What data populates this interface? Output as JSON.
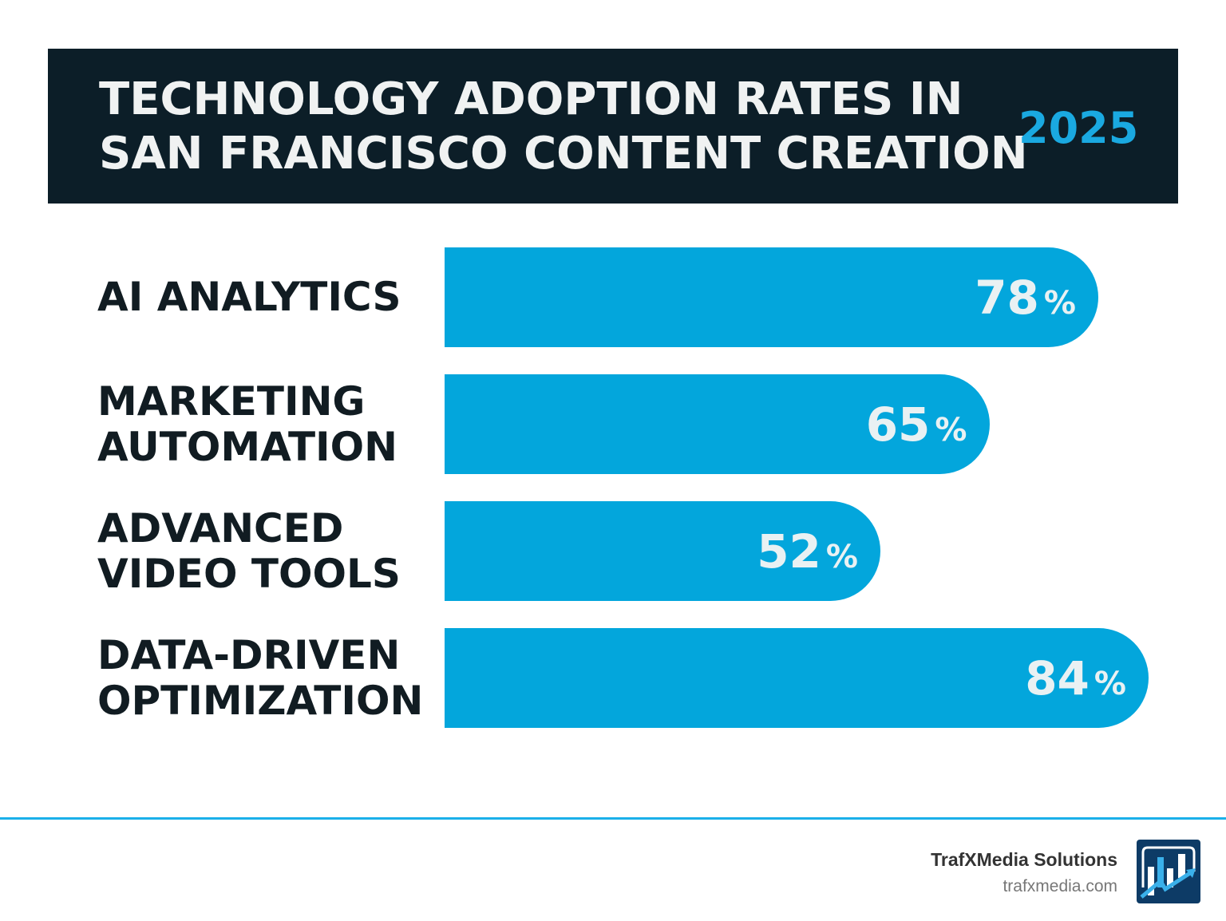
{
  "chart_data": {
    "type": "bar",
    "orientation": "horizontal",
    "title": "TECHNOLOGY ADOPTION RATES IN SAN FRANCISCO CONTENT CREATION",
    "title_lines": [
      "TECHNOLOGY ADOPTION RATES IN",
      "SAN FRANCISCO CONTENT CREATION"
    ],
    "year": "2025",
    "categories": [
      [
        "AI ANALYTICS"
      ],
      [
        "MARKETING",
        "AUTOMATION"
      ],
      [
        "ADVANCED",
        "VIDEO TOOLS"
      ],
      [
        "DATA-DRIVEN",
        "OPTIMIZATION"
      ]
    ],
    "values": [
      78,
      65,
      52,
      84
    ],
    "unit": "%",
    "grid": false,
    "colors": {
      "bar": "#03a6dc",
      "header": "#0c1e28",
      "accent": "#1aa9e1"
    }
  },
  "footer": {
    "brand_name": "TrafXMedia Solutions",
    "url": "trafxmedia.com",
    "logo_icon": "bar-chart-trend-arrow-icon"
  }
}
